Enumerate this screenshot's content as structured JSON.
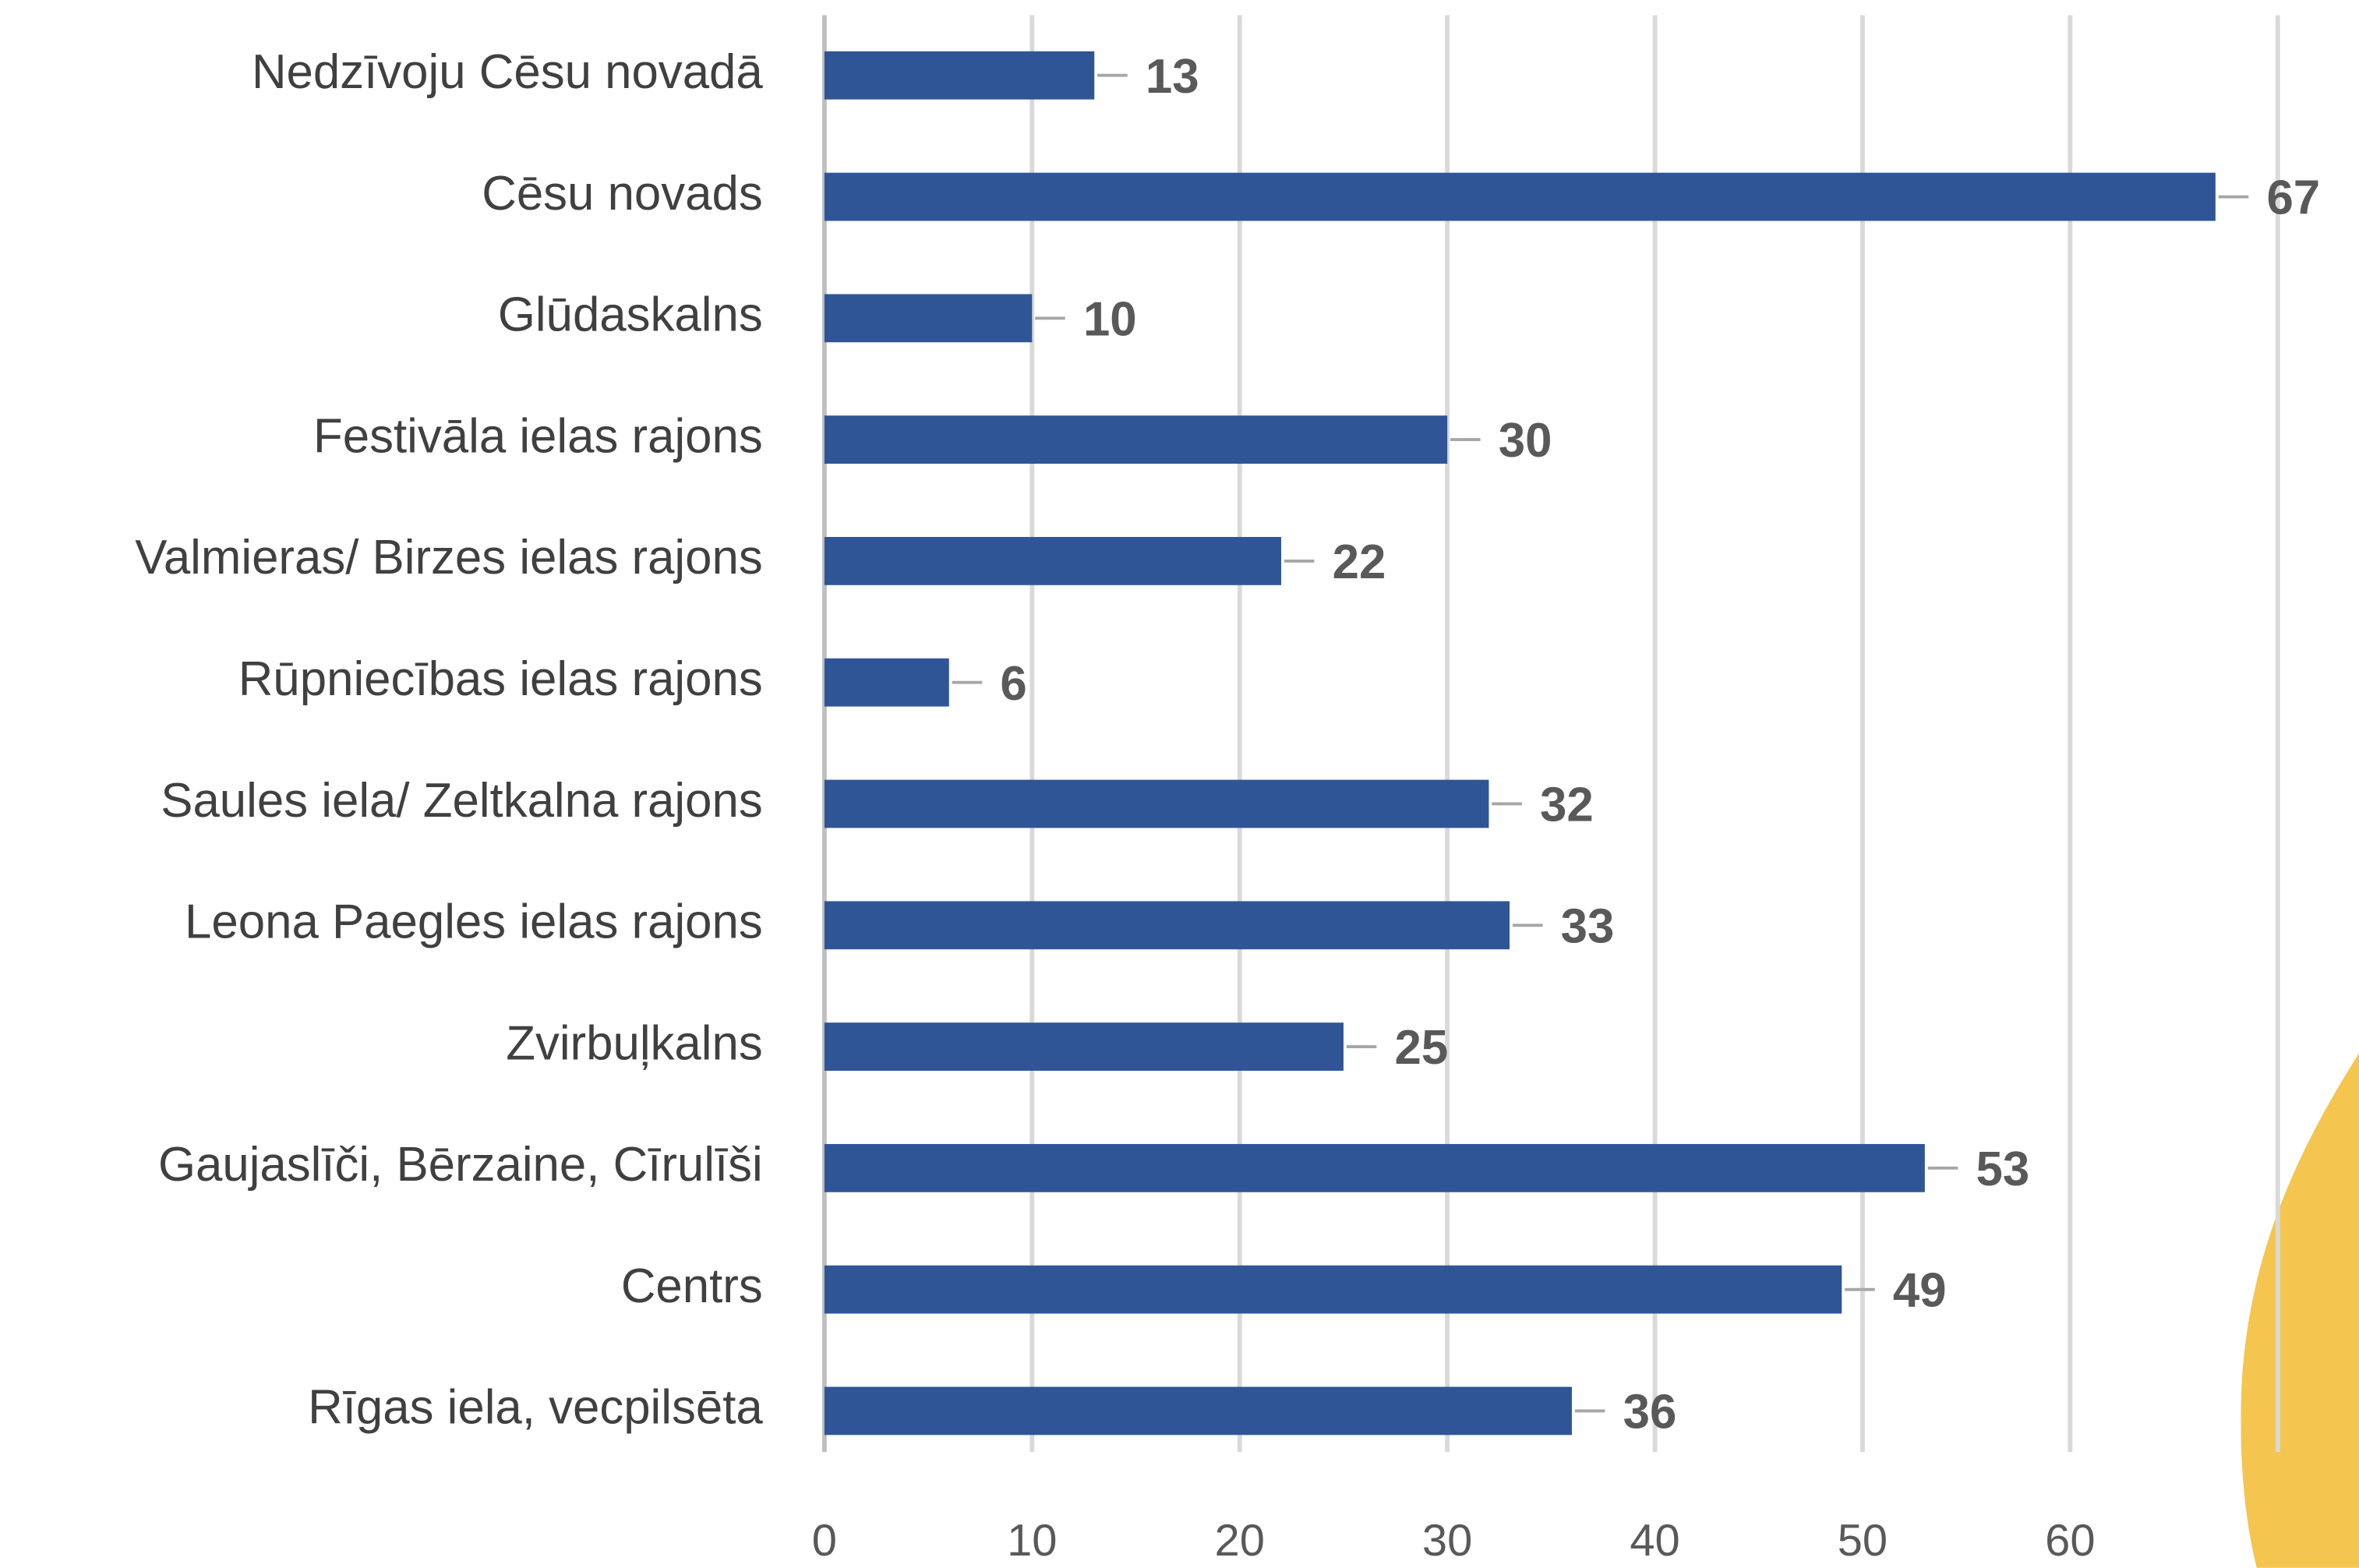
{
  "chart_data": {
    "type": "bar",
    "orientation": "horizontal",
    "categories": [
      "Nedzīvoju Cēsu novadā",
      "Cēsu novads",
      "Glūdaskalns",
      "Festivāla ielas rajons",
      "Valmieras/ Birzes ielas rajons",
      "Rūpniecības ielas rajons",
      "Saules iela/ Zeltkalna rajons",
      "Leona Paegles ielas rajons",
      "Zvirbuļkalns",
      "Gaujaslīči, Bērzaine, Cīrulīši",
      "Centrs",
      "Rīgas iela, vecpilsēta"
    ],
    "values": [
      13,
      67,
      10,
      30,
      22,
      6,
      32,
      33,
      25,
      53,
      49,
      36
    ],
    "color": "#2f5597",
    "xlim": [
      0,
      70
    ],
    "xticks": [
      0,
      10,
      20,
      30,
      40,
      50,
      60
    ],
    "grid": true
  }
}
